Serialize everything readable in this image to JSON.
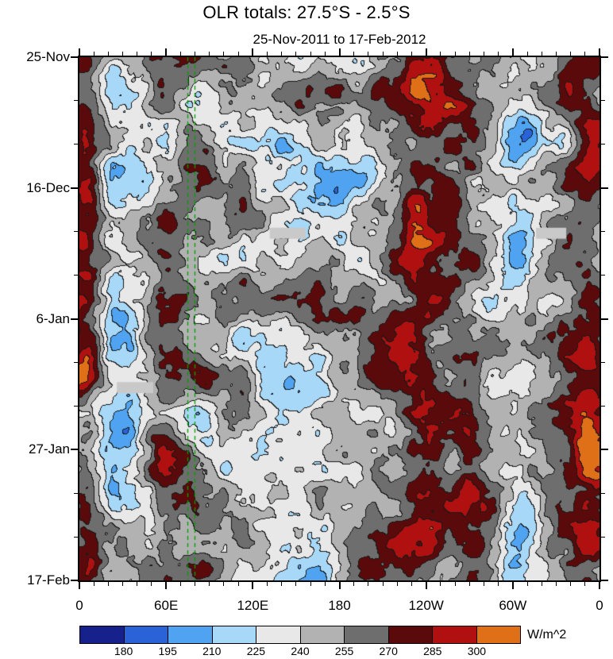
{
  "title": "OLR totals: 27.5°S - 2.5°S",
  "subtitle": "25-Nov-2011 to 17-Feb-2012",
  "chart_data": {
    "type": "heatmap",
    "title": "OLR totals: 27.5°S - 2.5°S",
    "subtitle": "25-Nov-2011 to 17-Feb-2012",
    "description": "Time-longitude (Hovmoller) filled-contour plot of OLR totals averaged 27.5S-2.5S",
    "x_axis": {
      "tick_labels": [
        "0",
        "60E",
        "120E",
        "180",
        "120W",
        "60W",
        "0"
      ],
      "minor_subdivisions": 6
    },
    "y_axis": {
      "tick_labels": [
        "25-Nov",
        "16-Dec",
        "6-Jan",
        "27-Jan",
        "17-Feb"
      ],
      "minor_subdivisions": 3
    },
    "colorbar": {
      "unit": "W/m^2",
      "levels": [
        180,
        195,
        210,
        225,
        240,
        255,
        270,
        285,
        300
      ],
      "tick_labels": [
        "180",
        "195",
        "210",
        "225",
        "240",
        "255",
        "270",
        "285",
        "300"
      ],
      "colors": [
        "#16218c",
        "#2a62d8",
        "#4fa3f0",
        "#a8d8f8",
        "#e8e8e8",
        "#b2b2b2",
        "#6e6e6e",
        "#5a0a0a",
        "#b01010",
        "#e07018"
      ]
    },
    "annotations": {
      "reference_lines": {
        "color": "#00a000",
        "style": "dashed",
        "x_fracs": [
          0.2076,
          0.2214
        ]
      },
      "missing_data_bars": [
        {
          "x": 0.366,
          "y": 0.326,
          "w": 0.069,
          "h": 0.021
        },
        {
          "x": 0.072,
          "y": 0.621,
          "w": 0.07,
          "h": 0.021
        },
        {
          "x": 0.878,
          "y": 0.326,
          "w": 0.058,
          "h": 0.021
        }
      ]
    }
  }
}
